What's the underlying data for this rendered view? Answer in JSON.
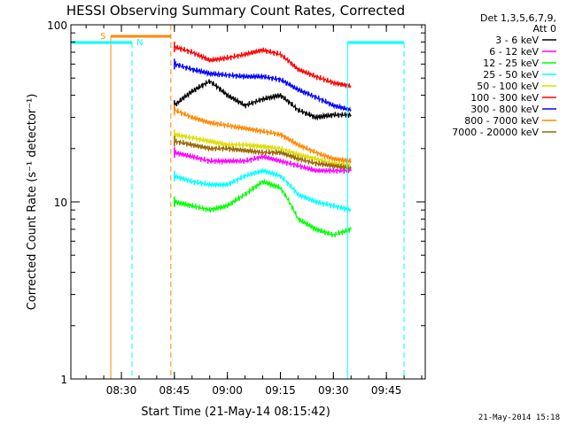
{
  "chart_data": {
    "type": "line",
    "title": "HESSI Observing Summary Count Rates, Corrected",
    "xlabel": "Start Time (21-May-14 08:15:42)",
    "ylabel": "Corrected Count Rate (s⁻¹ detector⁻¹)",
    "y_scale": "log",
    "xlim": [
      "08:15:42",
      "09:56:00"
    ],
    "ylim": [
      1,
      100
    ],
    "x_ticks": [
      "08:30",
      "08:45",
      "09:00",
      "09:15",
      "09:30",
      "09:45"
    ],
    "y_ticks": [
      "1",
      "10",
      "100"
    ],
    "grid": false,
    "legend_header": [
      "Det 1,3,5,6,7,9,",
      "Att 0"
    ],
    "legend_position": "right",
    "series": [
      {
        "name": "3 - 6 keV",
        "color": "#000000",
        "x": [
          "08:45",
          "08:50",
          "08:55",
          "09:00",
          "09:05",
          "09:10",
          "09:15",
          "09:20",
          "09:25",
          "09:30",
          "09:35"
        ],
        "y": [
          35,
          42,
          48,
          40,
          35,
          38,
          40,
          33,
          30,
          31,
          31
        ]
      },
      {
        "name": "6 - 12 keV",
        "color": "#ff00ff",
        "x": [
          "08:45",
          "08:50",
          "08:55",
          "09:00",
          "09:05",
          "09:10",
          "09:15",
          "09:20",
          "09:25",
          "09:30",
          "09:35"
        ],
        "y": [
          19,
          18,
          17,
          17,
          17,
          18,
          17,
          16,
          15,
          15,
          15
        ]
      },
      {
        "name": "12 - 25 keV",
        "color": "#00ff00",
        "x": [
          "08:45",
          "08:50",
          "08:55",
          "09:00",
          "09:05",
          "09:10",
          "09:15",
          "09:20",
          "09:25",
          "09:30",
          "09:35"
        ],
        "y": [
          10,
          9.5,
          9,
          9.5,
          11,
          13,
          12,
          8,
          7,
          6.5,
          7
        ]
      },
      {
        "name": "25 - 50 keV",
        "color": "#00ffff",
        "x": [
          "08:45",
          "08:50",
          "08:55",
          "09:00",
          "09:05",
          "09:10",
          "09:15",
          "09:20",
          "09:25",
          "09:30",
          "09:35"
        ],
        "y": [
          14,
          13,
          12.5,
          12.5,
          14,
          15,
          14,
          11,
          10,
          9.5,
          9
        ]
      },
      {
        "name": "50 - 100 keV",
        "color": "#dddd00",
        "x": [
          "08:45",
          "08:50",
          "08:55",
          "09:00",
          "09:05",
          "09:10",
          "09:15",
          "09:20",
          "09:25",
          "09:30",
          "09:35"
        ],
        "y": [
          24,
          23,
          22,
          21,
          21,
          20.5,
          20,
          18.5,
          17.5,
          16.5,
          16
        ]
      },
      {
        "name": "100 - 300 keV",
        "color": "#ff0000",
        "x": [
          "08:45",
          "08:50",
          "08:55",
          "09:00",
          "09:05",
          "09:10",
          "09:15",
          "09:20",
          "09:25",
          "09:30",
          "09:35"
        ],
        "y": [
          75,
          70,
          63,
          65,
          68,
          72,
          68,
          56,
          51,
          47,
          45
        ]
      },
      {
        "name": "300 - 800 keV",
        "color": "#0000ff",
        "x": [
          "08:45",
          "08:50",
          "08:55",
          "09:00",
          "09:05",
          "09:10",
          "09:15",
          "09:20",
          "09:25",
          "09:30",
          "09:35"
        ],
        "y": [
          60,
          56,
          53,
          52,
          51,
          51,
          49,
          43,
          39,
          35,
          33
        ]
      },
      {
        "name": "800 - 7000 keV",
        "color": "#ff8800",
        "x": [
          "08:45",
          "08:50",
          "08:55",
          "09:00",
          "09:05",
          "09:10",
          "09:15",
          "09:20",
          "09:25",
          "09:30",
          "09:35"
        ],
        "y": [
          33,
          30,
          28,
          27,
          26,
          25,
          24,
          21,
          19,
          17.5,
          17
        ]
      },
      {
        "name": "7000 - 20000 keV",
        "color": "#996600",
        "x": [
          "08:45",
          "08:50",
          "08:55",
          "09:00",
          "09:05",
          "09:10",
          "09:15",
          "09:20",
          "09:25",
          "09:30",
          "09:35"
        ],
        "y": [
          22,
          21,
          20,
          20,
          19.5,
          19,
          19,
          17.5,
          16.5,
          16,
          15.5
        ]
      }
    ],
    "annotations": [
      {
        "label": "S",
        "color": "#ff8800",
        "from": "08:27",
        "to": "08:44"
      },
      {
        "label": "N",
        "color": "#00ffff",
        "from": "08:15:42",
        "to": "08:33"
      },
      {
        "label": "",
        "color": "#00ffff",
        "from": "09:34",
        "to": "09:50"
      }
    ],
    "footer_date": "21-May-2014 15:18"
  }
}
